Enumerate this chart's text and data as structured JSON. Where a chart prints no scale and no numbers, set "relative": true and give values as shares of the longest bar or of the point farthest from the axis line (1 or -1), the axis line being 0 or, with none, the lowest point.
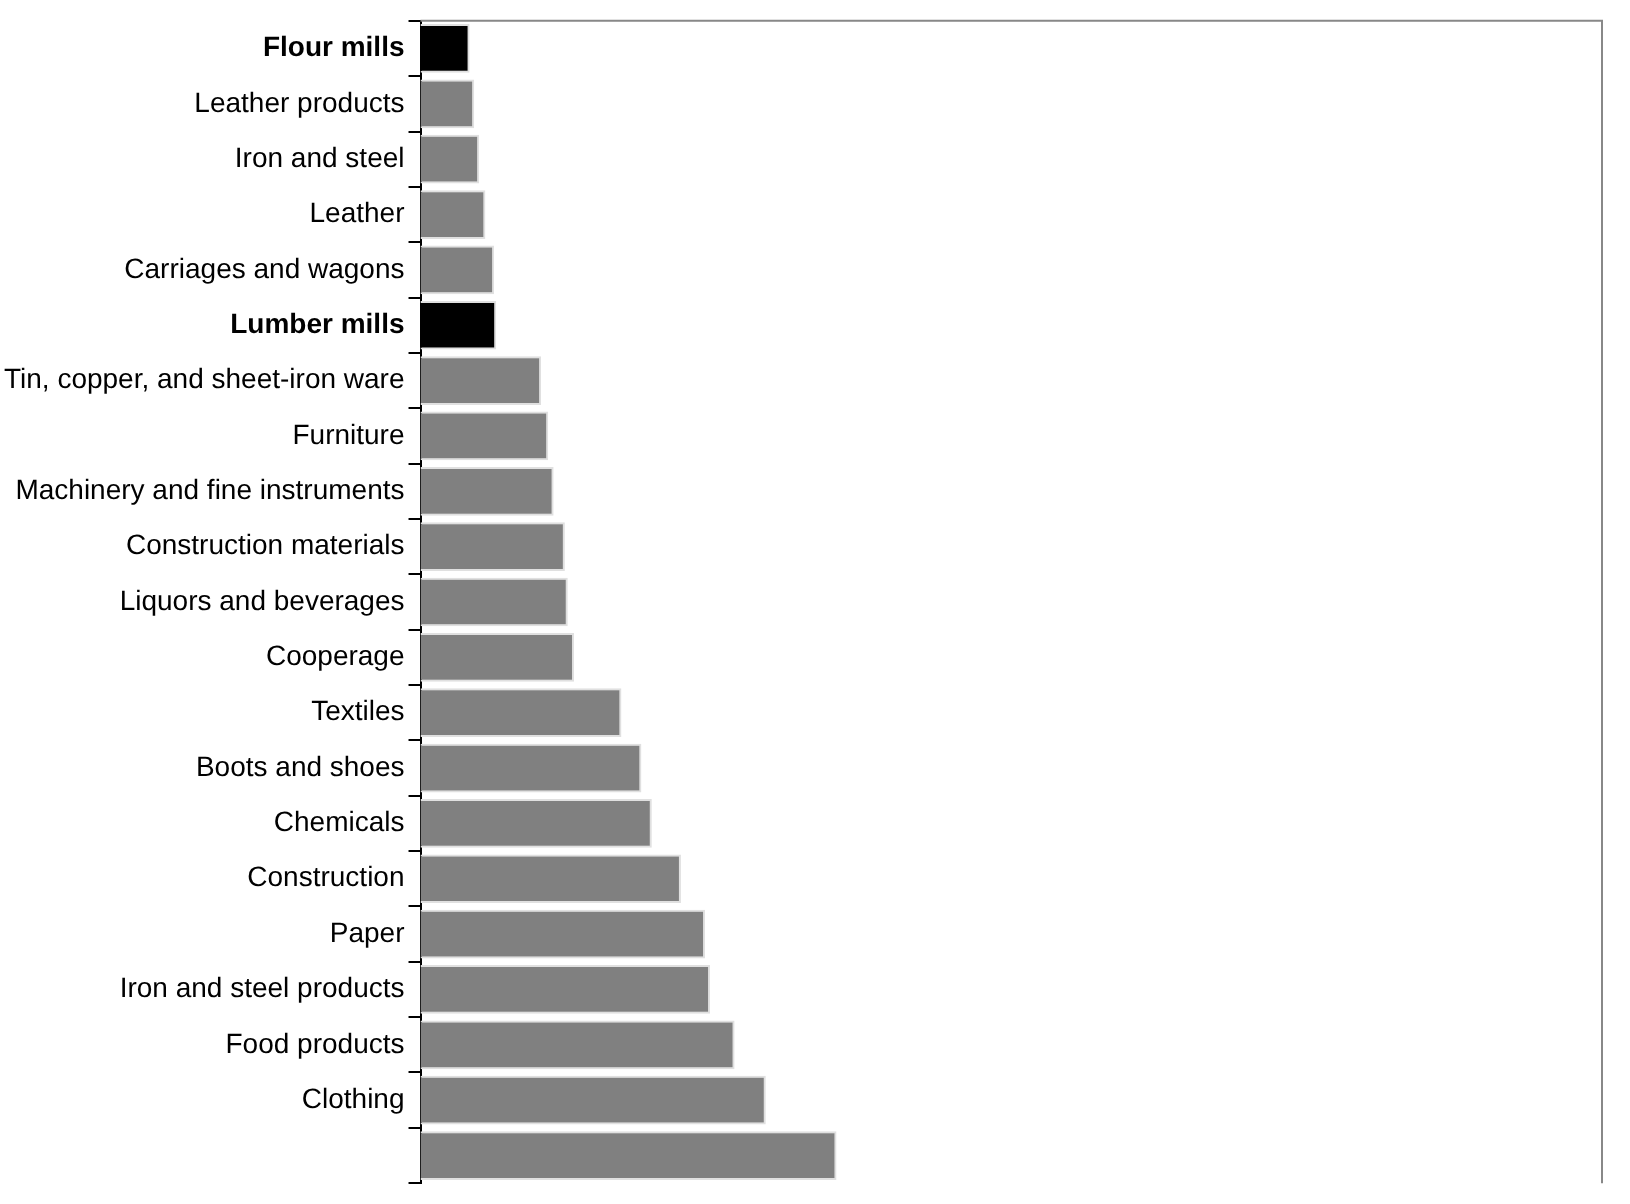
{
  "chart_data": {
    "type": "bar",
    "orientation": "horizontal",
    "relative": true,
    "categories": [
      "Flour mills",
      "Leather products",
      "Iron and steel",
      "Leather",
      "Carriages and wagons",
      "Lumber mills",
      "Tin, copper, and sheet-iron ware",
      "Furniture",
      "Machinery and fine instruments",
      "Construction materials",
      "Liquors and beverages",
      "Cooperage",
      "Textiles",
      "Boots and shoes",
      "Chemicals",
      "Construction",
      "Paper",
      "Iron and steel products",
      "Food products",
      "Clothing",
      null
    ],
    "values": [
      0.118,
      0.129,
      0.141,
      0.156,
      0.177,
      0.182,
      0.29,
      0.307,
      0.32,
      0.347,
      0.354,
      0.369,
      0.483,
      0.531,
      0.556,
      0.626,
      0.684,
      0.696,
      0.755,
      0.83,
      1
    ],
    "colors": [
      "#000000",
      "#808080",
      "#808080",
      "#808080",
      "#808080",
      "#000000",
      "#808080",
      "#808080",
      "#808080",
      "#808080",
      "#808080",
      "#808080",
      "#808080",
      "#808080",
      "#808080",
      "#808080",
      "#808080",
      "#808080",
      "#808080",
      "#808080",
      "#808080"
    ],
    "legend": false
  }
}
